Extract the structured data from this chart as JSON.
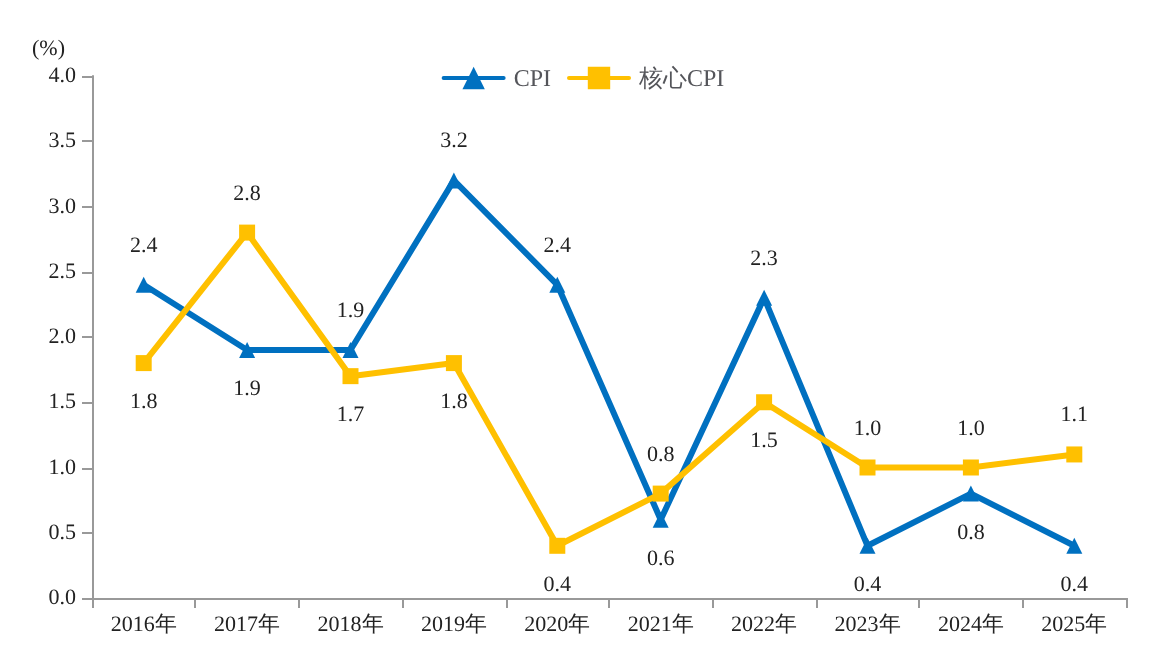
{
  "chart_data": {
    "type": "line",
    "ylabel": "(%)",
    "categories": [
      "2016年",
      "2017年",
      "2018年",
      "2019年",
      "2020年",
      "2021年",
      "2022年",
      "2023年",
      "2024年",
      "2025年"
    ],
    "series": [
      {
        "name": "CPI",
        "color": "#0070c0",
        "marker": "triangle",
        "values": [
          2.4,
          1.9,
          1.9,
          3.2,
          2.4,
          0.6,
          2.3,
          0.4,
          0.8,
          0.4
        ],
        "value_labels": [
          "2.4",
          "1.9",
          "1.9",
          "3.2",
          "2.4",
          "0.6",
          "2.3",
          "0.4",
          "0.8",
          "0.4"
        ]
      },
      {
        "name": "核心CPI",
        "color": "#ffc000",
        "marker": "square",
        "values": [
          1.8,
          2.8,
          1.7,
          1.8,
          0.4,
          0.8,
          1.5,
          1.0,
          1.0,
          1.1
        ],
        "value_labels": [
          "1.8",
          "2.8",
          "1.7",
          "1.8",
          "0.4",
          "0.8",
          "1.5",
          "1.0",
          "1.0",
          "1.1"
        ]
      }
    ],
    "ylim": [
      0,
      4
    ],
    "yticks": [
      {
        "value": 0,
        "label": "0.0"
      },
      {
        "value": 0.5,
        "label": "0.5"
      },
      {
        "value": 1,
        "label": "1.0"
      },
      {
        "value": 1.5,
        "label": "1.5"
      },
      {
        "value": 2,
        "label": "2.0"
      },
      {
        "value": 2.5,
        "label": "2.5"
      },
      {
        "value": 3,
        "label": "3.0"
      },
      {
        "value": 3.5,
        "label": "3.5"
      },
      {
        "value": 4,
        "label": "4.0"
      }
    ],
    "grid": false,
    "legend": "top",
    "line_style": "solid"
  }
}
